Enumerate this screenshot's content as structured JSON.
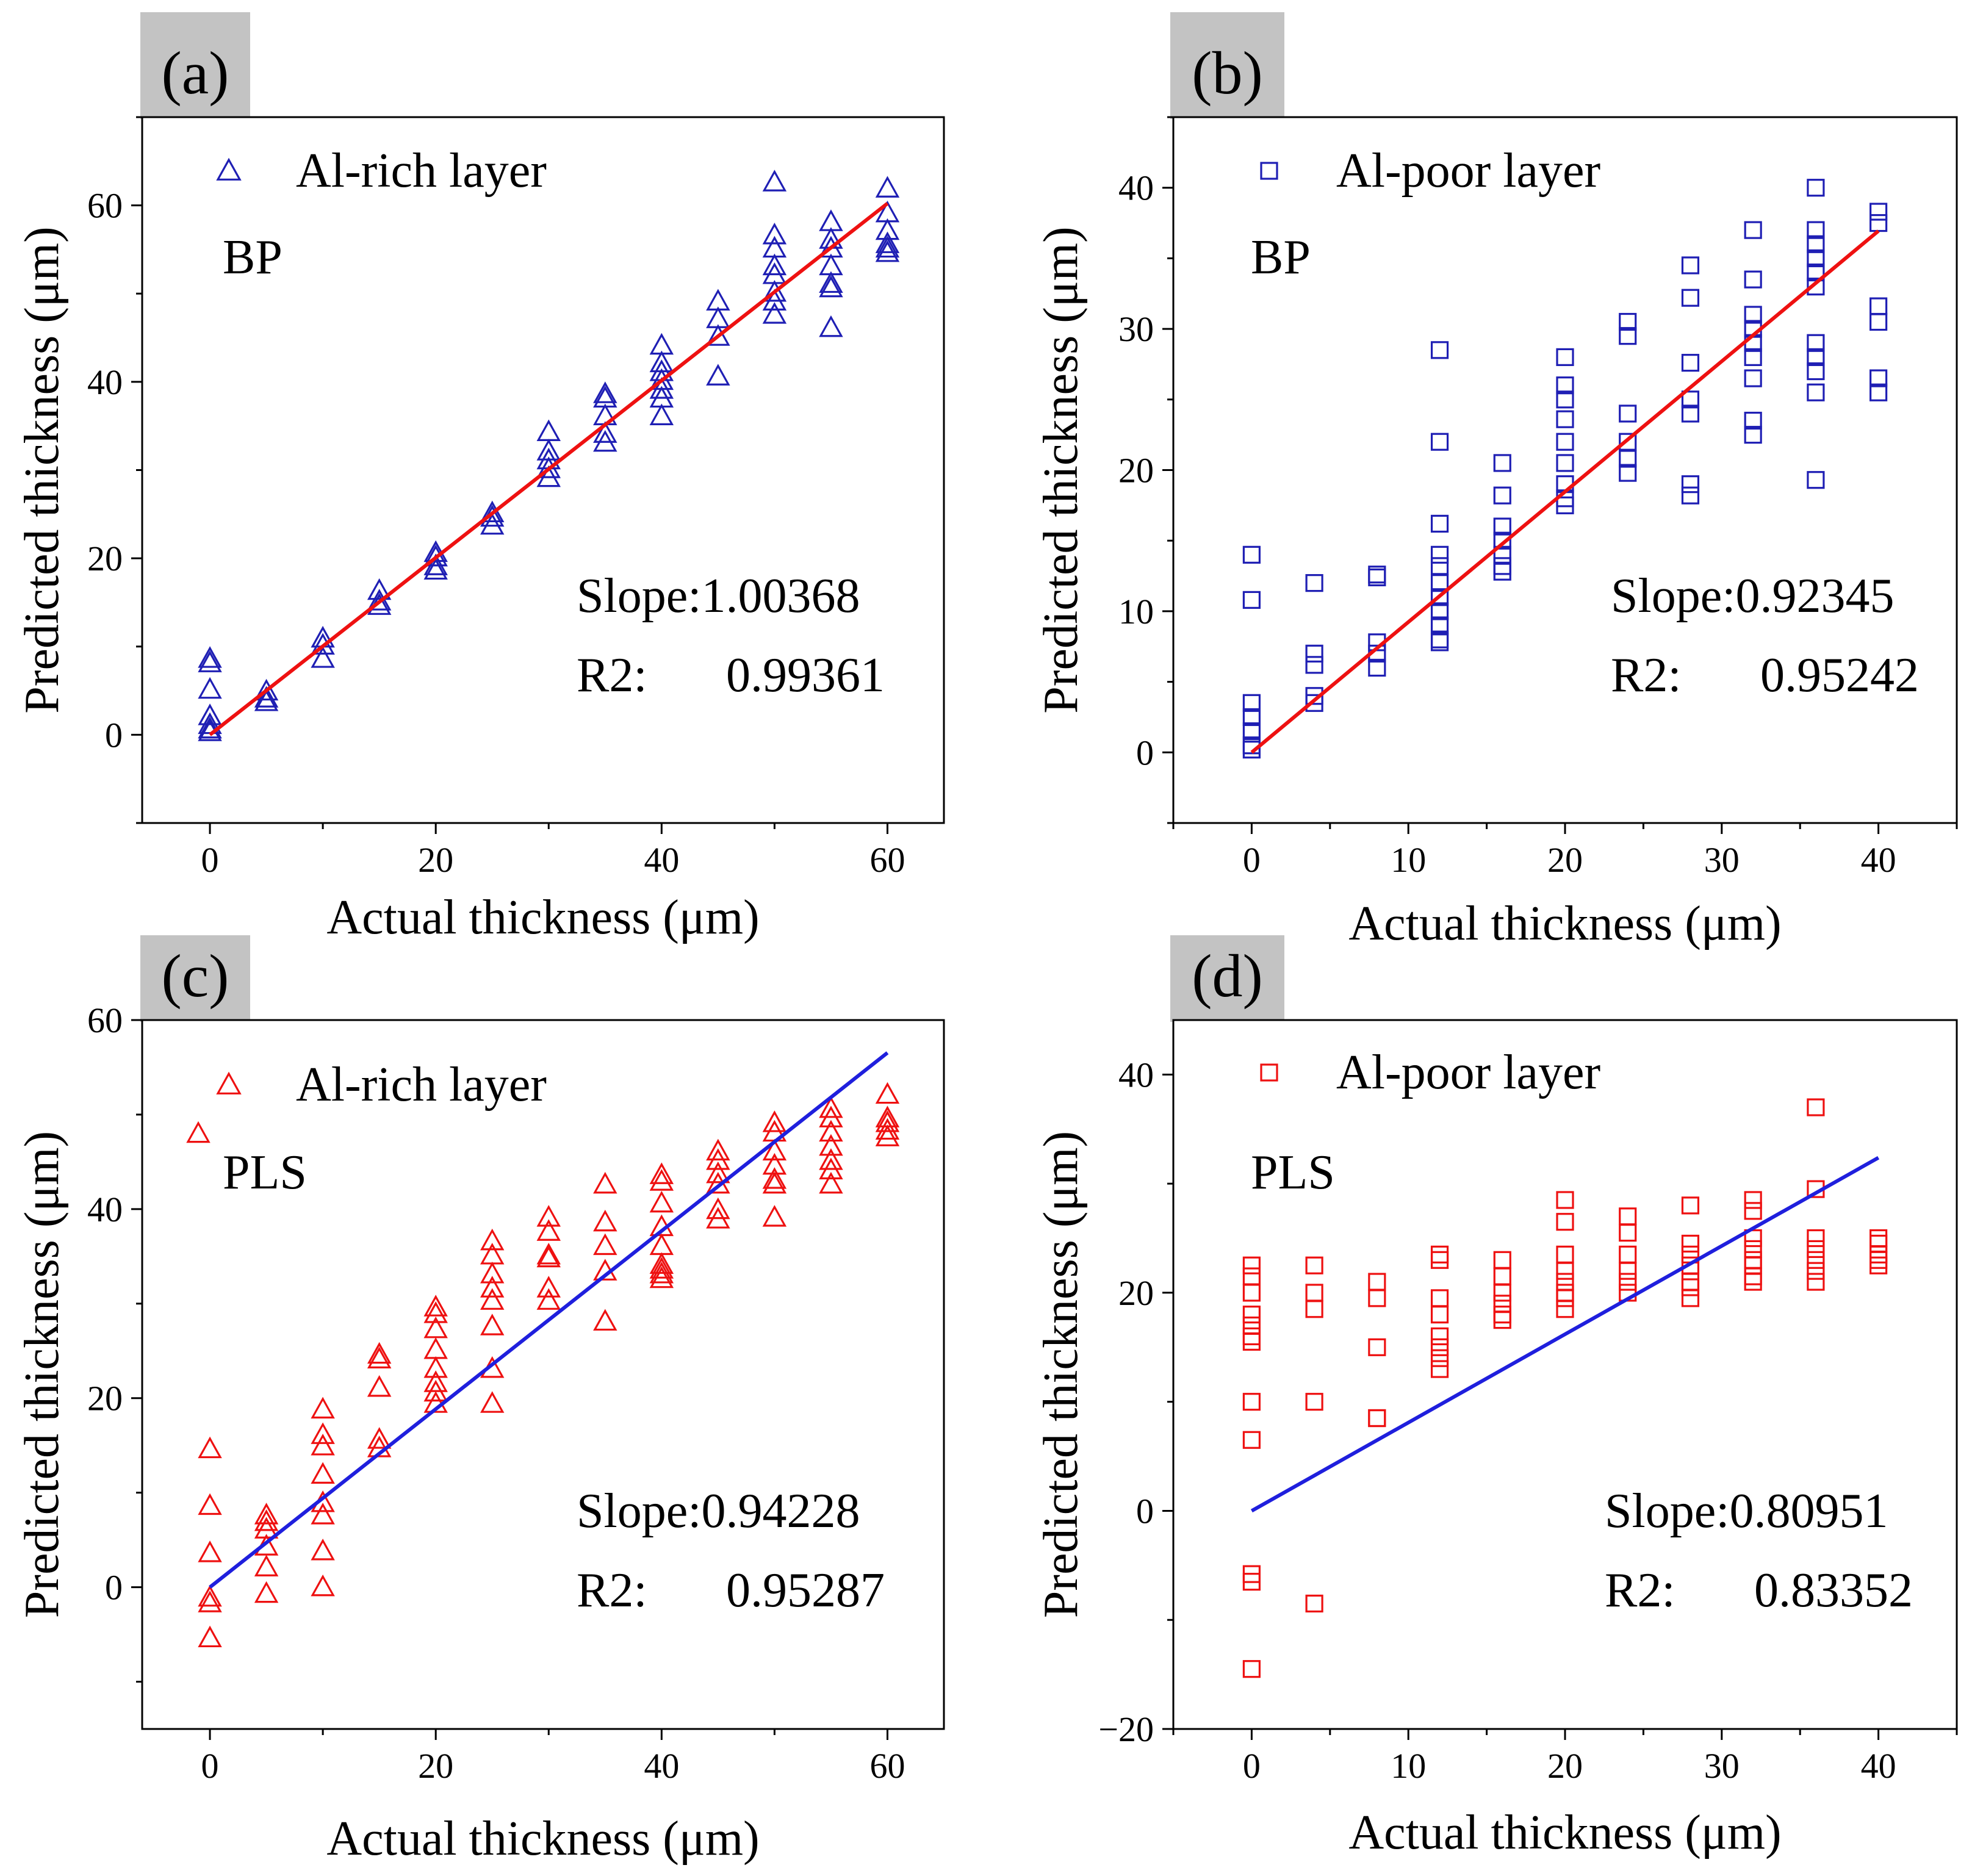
{
  "chart_data": [
    {
      "type": "scatter",
      "panel_label": "(a)",
      "legend_label": "Al-rich layer",
      "method_label": "BP",
      "xlabel": "Actual thickness (μm)",
      "ylabel": "Predicted thickness (μm)",
      "xlim": [
        -6,
        65
      ],
      "ylim": [
        -10,
        70
      ],
      "xticks": [
        0,
        20,
        40,
        60
      ],
      "xtick_labels": [
        "0",
        "20",
        "40",
        "60"
      ],
      "yticks": [
        0,
        20,
        40,
        60
      ],
      "ytick_labels": [
        "0",
        "20",
        "40",
        "60"
      ],
      "marker": "triangle",
      "marker_color": "#1f1fb4",
      "fit_line_color": "#ee1111",
      "slope_text": "Slope:1.00368",
      "r2_prefix": "R2:",
      "r2_value": "0.99361",
      "fit_line": {
        "slope": 1.00368,
        "intercept": 0,
        "x_range": [
          0,
          60
        ]
      },
      "points": {
        "x": [
          0,
          0,
          0,
          0,
          0,
          0,
          0,
          5,
          5,
          5,
          10,
          10,
          10,
          15,
          15,
          15,
          20,
          20,
          20,
          20,
          25,
          25,
          25,
          30,
          30,
          30,
          30,
          30,
          35,
          35,
          35,
          35,
          35,
          40,
          40,
          40,
          40,
          40,
          40,
          40,
          45,
          45,
          45,
          45,
          50,
          50,
          50,
          50,
          50,
          50,
          50,
          50,
          55,
          55,
          55,
          55,
          55,
          55,
          55,
          60,
          60,
          60,
          60,
          60,
          60
        ],
        "y": [
          8.5,
          8,
          5,
          2,
          1,
          0.5,
          0.2,
          4.8,
          4,
          3.6,
          10.8,
          10,
          8.5,
          16.2,
          15,
          14.5,
          20.5,
          20,
          19,
          18.5,
          25,
          24.5,
          23.6,
          34.2,
          32,
          31,
          30,
          29,
          38.5,
          38,
          36,
          34,
          33,
          44,
          42,
          41,
          40,
          39,
          38,
          36,
          49,
          47,
          45,
          40.5,
          62.5,
          56.5,
          55,
          53,
          52,
          50,
          49,
          47.5,
          58,
          56,
          55,
          53,
          51,
          50.5,
          46,
          61.8,
          59,
          57,
          55.5,
          55,
          54.5
        ]
      }
    },
    {
      "type": "scatter",
      "panel_label": "(b)",
      "legend_label": "Al-poor layer",
      "method_label": "BP",
      "xlabel": "Actual thickness (μm)",
      "ylabel": "Predicted thickness (μm)",
      "xlim": [
        -5,
        45
      ],
      "ylim": [
        -5,
        45
      ],
      "xticks": [
        0,
        10,
        20,
        30,
        40
      ],
      "xtick_labels": [
        "0",
        "10",
        "20",
        "30",
        "40"
      ],
      "yticks": [
        0,
        10,
        20,
        30,
        40
      ],
      "ytick_labels": [
        "0",
        "10",
        "20",
        "30",
        "40"
      ],
      "marker": "square",
      "marker_color": "#1f1fb4",
      "fit_line_color": "#ee1111",
      "slope_text": "Slope:0.92345",
      "r2_prefix": "R2:",
      "r2_value": "0.95242",
      "fit_line": {
        "slope": 0.92345,
        "intercept": 0,
        "x_range": [
          0,
          40
        ]
      },
      "points": {
        "x": [
          0,
          0,
          0,
          0,
          0,
          0,
          0,
          4,
          4,
          4,
          4,
          4,
          8,
          8,
          8,
          8,
          8,
          12,
          12,
          12,
          12,
          12,
          12,
          12,
          12,
          12,
          12,
          12,
          16,
          16,
          16,
          16,
          16,
          16,
          16,
          20,
          20,
          20,
          20,
          20,
          20,
          20,
          20,
          20,
          24,
          24,
          24,
          24,
          24,
          24,
          28,
          28,
          28,
          28,
          28,
          28,
          28,
          32,
          32,
          32,
          32,
          32,
          32,
          32,
          32,
          32,
          36,
          36,
          36,
          36,
          36,
          36,
          36,
          36,
          36,
          36,
          36,
          40,
          40,
          40,
          40,
          40,
          40
        ],
        "y": [
          14,
          10.8,
          3.5,
          2.5,
          1.5,
          0.5,
          0.2,
          12,
          7,
          6.2,
          4,
          3.5,
          12.6,
          12.4,
          7.8,
          7,
          6,
          28.5,
          22,
          16.2,
          14,
          13.2,
          12,
          11,
          10,
          9,
          8,
          7.8,
          20.5,
          18.2,
          16,
          15,
          14,
          13.2,
          12.8,
          28,
          26,
          25,
          23.6,
          22,
          20.5,
          19,
          18,
          17.5,
          30.5,
          29.5,
          24,
          22,
          20.8,
          19.8,
          34.5,
          32.2,
          27.6,
          25,
          24,
          19,
          18.2,
          37,
          33.5,
          31,
          30,
          29,
          28,
          26.5,
          23.5,
          22.5,
          40,
          37,
          36,
          35,
          34,
          33,
          29,
          28,
          27,
          25.5,
          19.3,
          38.3,
          37.5,
          31.6,
          30.5,
          26.5,
          25.5
        ]
      }
    },
    {
      "type": "scatter",
      "panel_label": "(c)",
      "legend_label": "Al-rich layer",
      "method_label": "PLS",
      "xlabel": "Actual thickness (μm)",
      "ylabel": "Predicted thickness (μm)",
      "xlim": [
        -6,
        65
      ],
      "ylim": [
        -15,
        60
      ],
      "xticks": [
        0,
        20,
        40,
        60
      ],
      "xtick_labels": [
        "0",
        "20",
        "40",
        "60"
      ],
      "yticks": [
        0,
        20,
        40,
        60
      ],
      "ytick_labels": [
        "0",
        "20",
        "40",
        "60"
      ],
      "marker": "triangle",
      "marker_color": "#ee1111",
      "fit_line_color": "#1f1fdd",
      "slope_text": "Slope:0.94228",
      "r2_prefix": "R2:",
      "r2_value": "0.95287",
      "fit_line": {
        "slope": 0.94228,
        "intercept": 0,
        "x_range": [
          0,
          60
        ]
      },
      "points": {
        "x": [
          0,
          0,
          0,
          0,
          0,
          0,
          5,
          5,
          5,
          5,
          5,
          5,
          10,
          10,
          10,
          10,
          10,
          10,
          10,
          10,
          15,
          15,
          15,
          15,
          15,
          20,
          20,
          20,
          20,
          20,
          20,
          20,
          20,
          25,
          25,
          25,
          25,
          25,
          25,
          25,
          25,
          30,
          30,
          30,
          30,
          30,
          30,
          35,
          35,
          35,
          35,
          35,
          40,
          40,
          40,
          40,
          40,
          40,
          40,
          40,
          40,
          45,
          45,
          45,
          45,
          45,
          45,
          50,
          50,
          50,
          50,
          50,
          50,
          50,
          55,
          55,
          55,
          55,
          55,
          55,
          55,
          60,
          60,
          60,
          60,
          60
        ],
        "y": [
          14.5,
          8.5,
          3.5,
          -1.2,
          -1.8,
          -5.5,
          7.5,
          6.8,
          6,
          4.2,
          2,
          -0.8,
          18.7,
          16,
          14.8,
          11.8,
          8.8,
          7.5,
          3.7,
          -0.1,
          24.5,
          24,
          21,
          15.5,
          14.6,
          29.5,
          28.8,
          27.2,
          25,
          23,
          21.5,
          20.5,
          19.3,
          36.5,
          35,
          33,
          31.5,
          30.2,
          27.5,
          23,
          19.3,
          39,
          37.5,
          35,
          34.7,
          31.5,
          30.2,
          42.5,
          38.5,
          36,
          33.3,
          28,
          43.5,
          42.8,
          40.5,
          38,
          36,
          34,
          33.5,
          33,
          32.5,
          46,
          45,
          43.6,
          42.5,
          39.8,
          38.8,
          49,
          48,
          46,
          44.5,
          43,
          42.5,
          39,
          50.5,
          49.5,
          48,
          46.5,
          45,
          44,
          42.5,
          52,
          49.5,
          49,
          48.2,
          47.5
        ]
      },
      "extra_legend_marker_note": ""
    },
    {
      "type": "scatter",
      "panel_label": "(d)",
      "legend_label": "Al-poor layer",
      "method_label": "PLS",
      "xlabel": "Actual thickness (μm)",
      "ylabel": "Predicted thickness (μm)",
      "xlim": [
        -5,
        45
      ],
      "ylim": [
        -20,
        45
      ],
      "xticks": [
        0,
        10,
        20,
        30,
        40
      ],
      "xtick_labels": [
        "0",
        "10",
        "20",
        "30",
        "40"
      ],
      "yticks": [
        -20,
        0,
        20,
        40
      ],
      "ytick_labels": [
        "−20",
        "0",
        "20",
        "40"
      ],
      "marker": "square",
      "marker_color": "#ee1111",
      "fit_line_color": "#1f1fdd",
      "slope_text": "Slope:0.80951",
      "r2_prefix": "R2:",
      "r2_value": "0.83352",
      "fit_line": {
        "slope": 0.80951,
        "intercept": 0,
        "x_range": [
          0,
          40
        ]
      },
      "points": {
        "x": [
          0,
          0,
          0,
          0,
          0,
          0,
          0,
          0,
          0,
          0,
          0,
          0,
          4,
          4,
          4,
          4,
          4,
          8,
          8,
          8,
          8,
          8,
          12,
          12,
          12,
          12,
          12,
          12,
          12,
          12,
          16,
          16,
          16,
          16,
          16,
          16,
          20,
          20,
          20,
          20,
          20,
          20,
          20,
          20,
          24,
          24,
          24,
          24,
          24,
          24,
          28,
          28,
          28,
          28,
          28,
          28,
          28,
          32,
          32,
          32,
          32,
          32,
          32,
          32,
          32,
          36,
          36,
          36,
          36,
          36,
          36,
          36,
          40,
          40,
          40,
          40,
          40
        ],
        "y": [
          22.5,
          21.5,
          20,
          18,
          17,
          16,
          15.5,
          10,
          6.5,
          -5.8,
          -6.5,
          -14.5,
          22.5,
          20,
          18.5,
          10,
          -8.5,
          21,
          19.5,
          15,
          8.5,
          8.5,
          23.5,
          23,
          19.5,
          18,
          16,
          15,
          14,
          13,
          23,
          21.5,
          20,
          19,
          18,
          17.5,
          28.5,
          26.5,
          23.5,
          22,
          21,
          20,
          19.5,
          18.5,
          27,
          25.5,
          23.5,
          22,
          21,
          20,
          28,
          24.5,
          23.5,
          22.5,
          21,
          20.5,
          19.5,
          28.5,
          27.5,
          25,
          24,
          23,
          22.5,
          21.5,
          21,
          37,
          29.5,
          25,
          24,
          23,
          22,
          21,
          25,
          24.5,
          23.5,
          23,
          22.5
        ]
      }
    }
  ]
}
